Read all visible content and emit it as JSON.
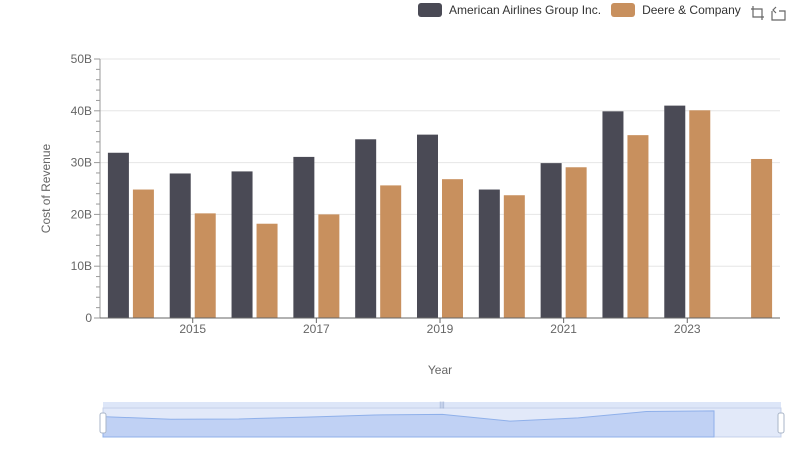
{
  "chart_data": {
    "type": "bar",
    "x": [
      2014,
      2015,
      2016,
      2017,
      2018,
      2019,
      2020,
      2021,
      2022,
      2023,
      2024
    ],
    "x_tick_labels": [
      "2015",
      "2017",
      "2019",
      "2021",
      "2023"
    ],
    "xlabel": "Year",
    "ylabel": "Cost of Revenue",
    "ylim": [
      0,
      50
    ],
    "y_tick_labels": [
      "0",
      "10B",
      "20B",
      "30B",
      "40B",
      "50B"
    ],
    "series": [
      {
        "name": "American Airlines Group Inc.",
        "color": "#4a4a55",
        "values": [
          31.9,
          27.9,
          28.3,
          31.1,
          34.5,
          35.4,
          24.8,
          29.9,
          39.9,
          41.0,
          null
        ]
      },
      {
        "name": "Deere & Company",
        "color": "#c8905e",
        "values": [
          24.8,
          20.2,
          18.2,
          20.0,
          25.6,
          26.8,
          23.7,
          29.1,
          35.3,
          40.1,
          30.7
        ]
      }
    ],
    "grid": true,
    "legend_position": "top-right",
    "has_data_zoom": true
  },
  "toolbox": {
    "icons": [
      "zoom-icon",
      "restore-icon"
    ]
  }
}
